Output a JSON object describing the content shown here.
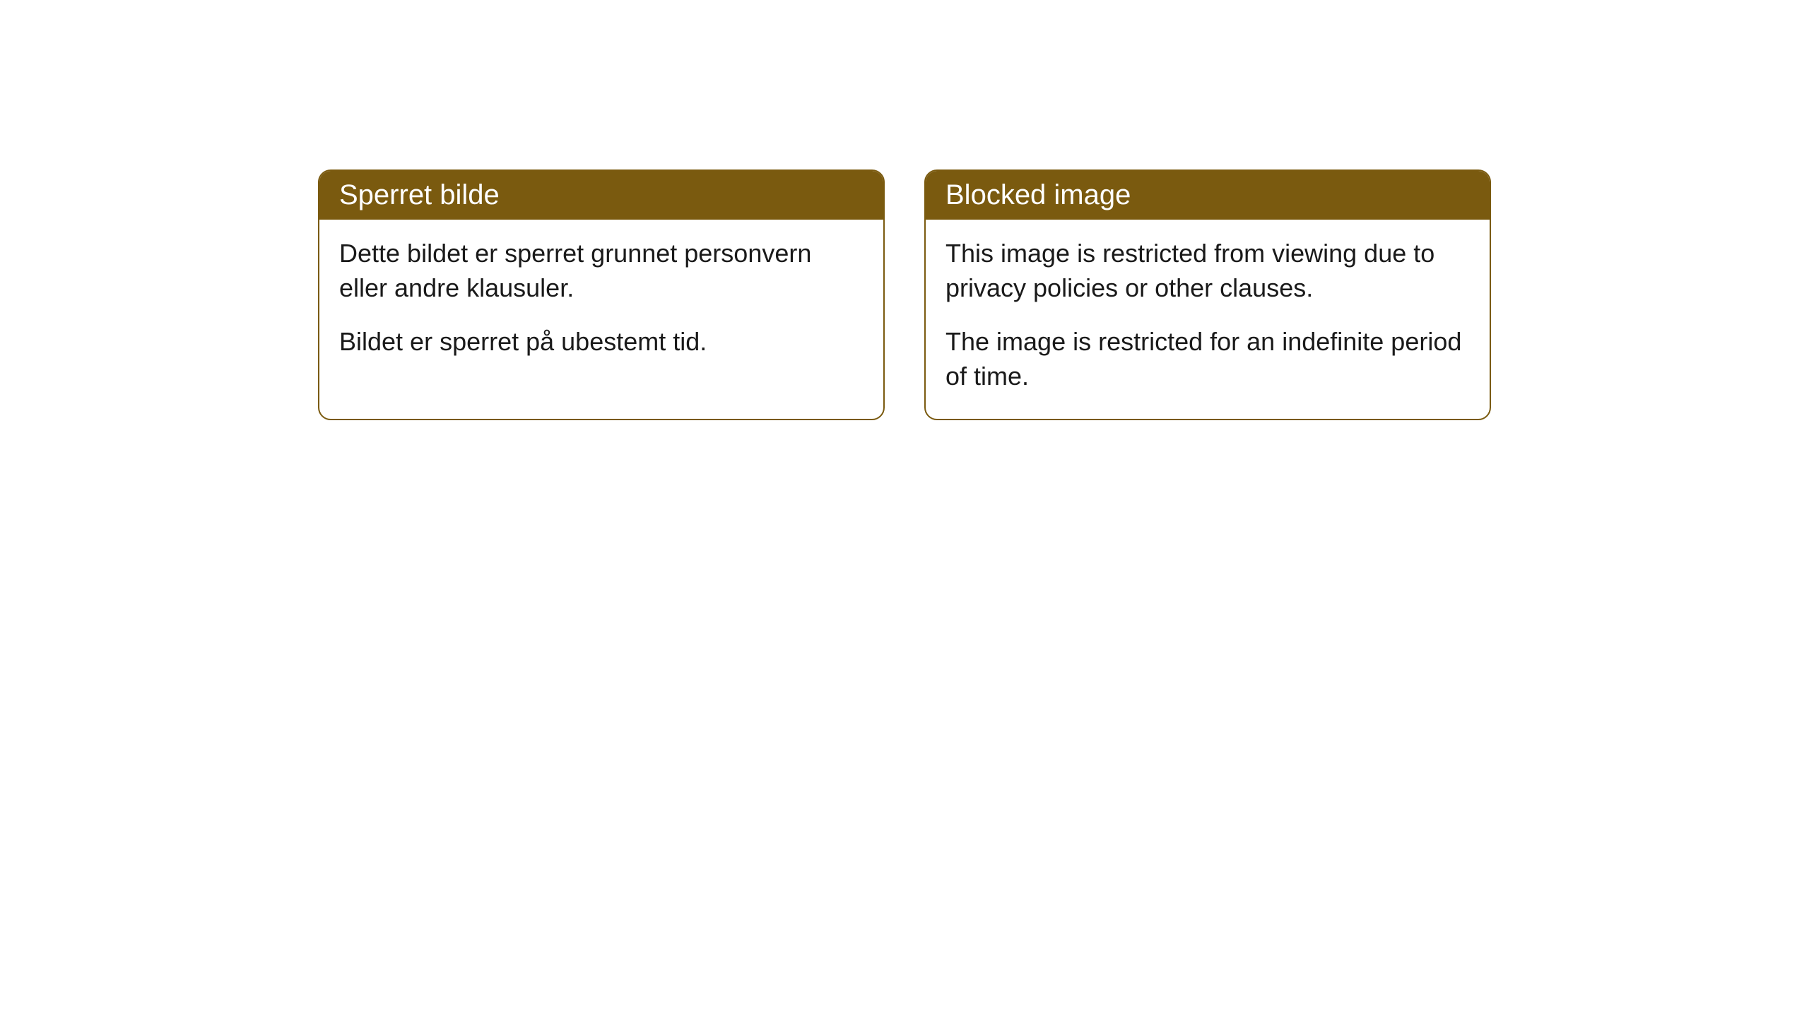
{
  "cards": [
    {
      "title": "Sperret bilde",
      "paragraph1": "Dette bildet er sperret grunnet personvern eller andre klausuler.",
      "paragraph2": "Bildet er sperret på ubestemt tid."
    },
    {
      "title": "Blocked image",
      "paragraph1": "This image is restricted from viewing due to privacy policies or other clauses.",
      "paragraph2": "The image is restricted for an indefinite period of time."
    }
  ],
  "styles": {
    "header_bg_color": "#7a5a0f",
    "header_text_color": "#ffffff",
    "border_color": "#7a5a0f",
    "body_bg_color": "#ffffff",
    "body_text_color": "#1a1a1a",
    "border_radius": 18,
    "title_fontsize": 40,
    "body_fontsize": 36
  }
}
